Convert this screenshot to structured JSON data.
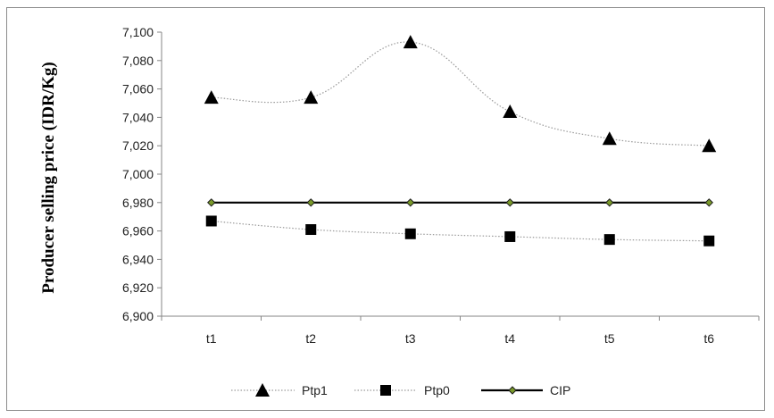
{
  "chart_data": {
    "type": "line",
    "ylabel": "Producer  selling price (IDR/Kg)",
    "xlabel": "",
    "categories": [
      "t1",
      "t2",
      "t3",
      "t4",
      "t5",
      "t6"
    ],
    "ylim": [
      6900,
      7100
    ],
    "ytick_step": 20,
    "ytick_labels": [
      "6,900",
      "6,920",
      "6,940",
      "6,960",
      "6,980",
      "7,000",
      "7,020",
      "7,040",
      "7,060",
      "7,080",
      "7,100"
    ],
    "grid": false,
    "legend_position": "bottom",
    "series": [
      {
        "name": "Ptp1",
        "values": [
          7054,
          7054,
          7093,
          7044,
          7025,
          7020
        ],
        "marker": "triangle",
        "line": "dotted",
        "color": "#000000",
        "line_color": "#9a9a9a"
      },
      {
        "name": "Ptp0",
        "values": [
          6967,
          6961,
          6958,
          6956,
          6954,
          6953
        ],
        "marker": "square",
        "line": "dotted",
        "color": "#000000",
        "line_color": "#9a9a9a"
      },
      {
        "name": "CIP",
        "values": [
          6980,
          6980,
          6980,
          6980,
          6980,
          6980
        ],
        "marker": "diamond",
        "line": "solid",
        "color": "#000000",
        "marker_fill": "#7a9a2a"
      }
    ]
  }
}
